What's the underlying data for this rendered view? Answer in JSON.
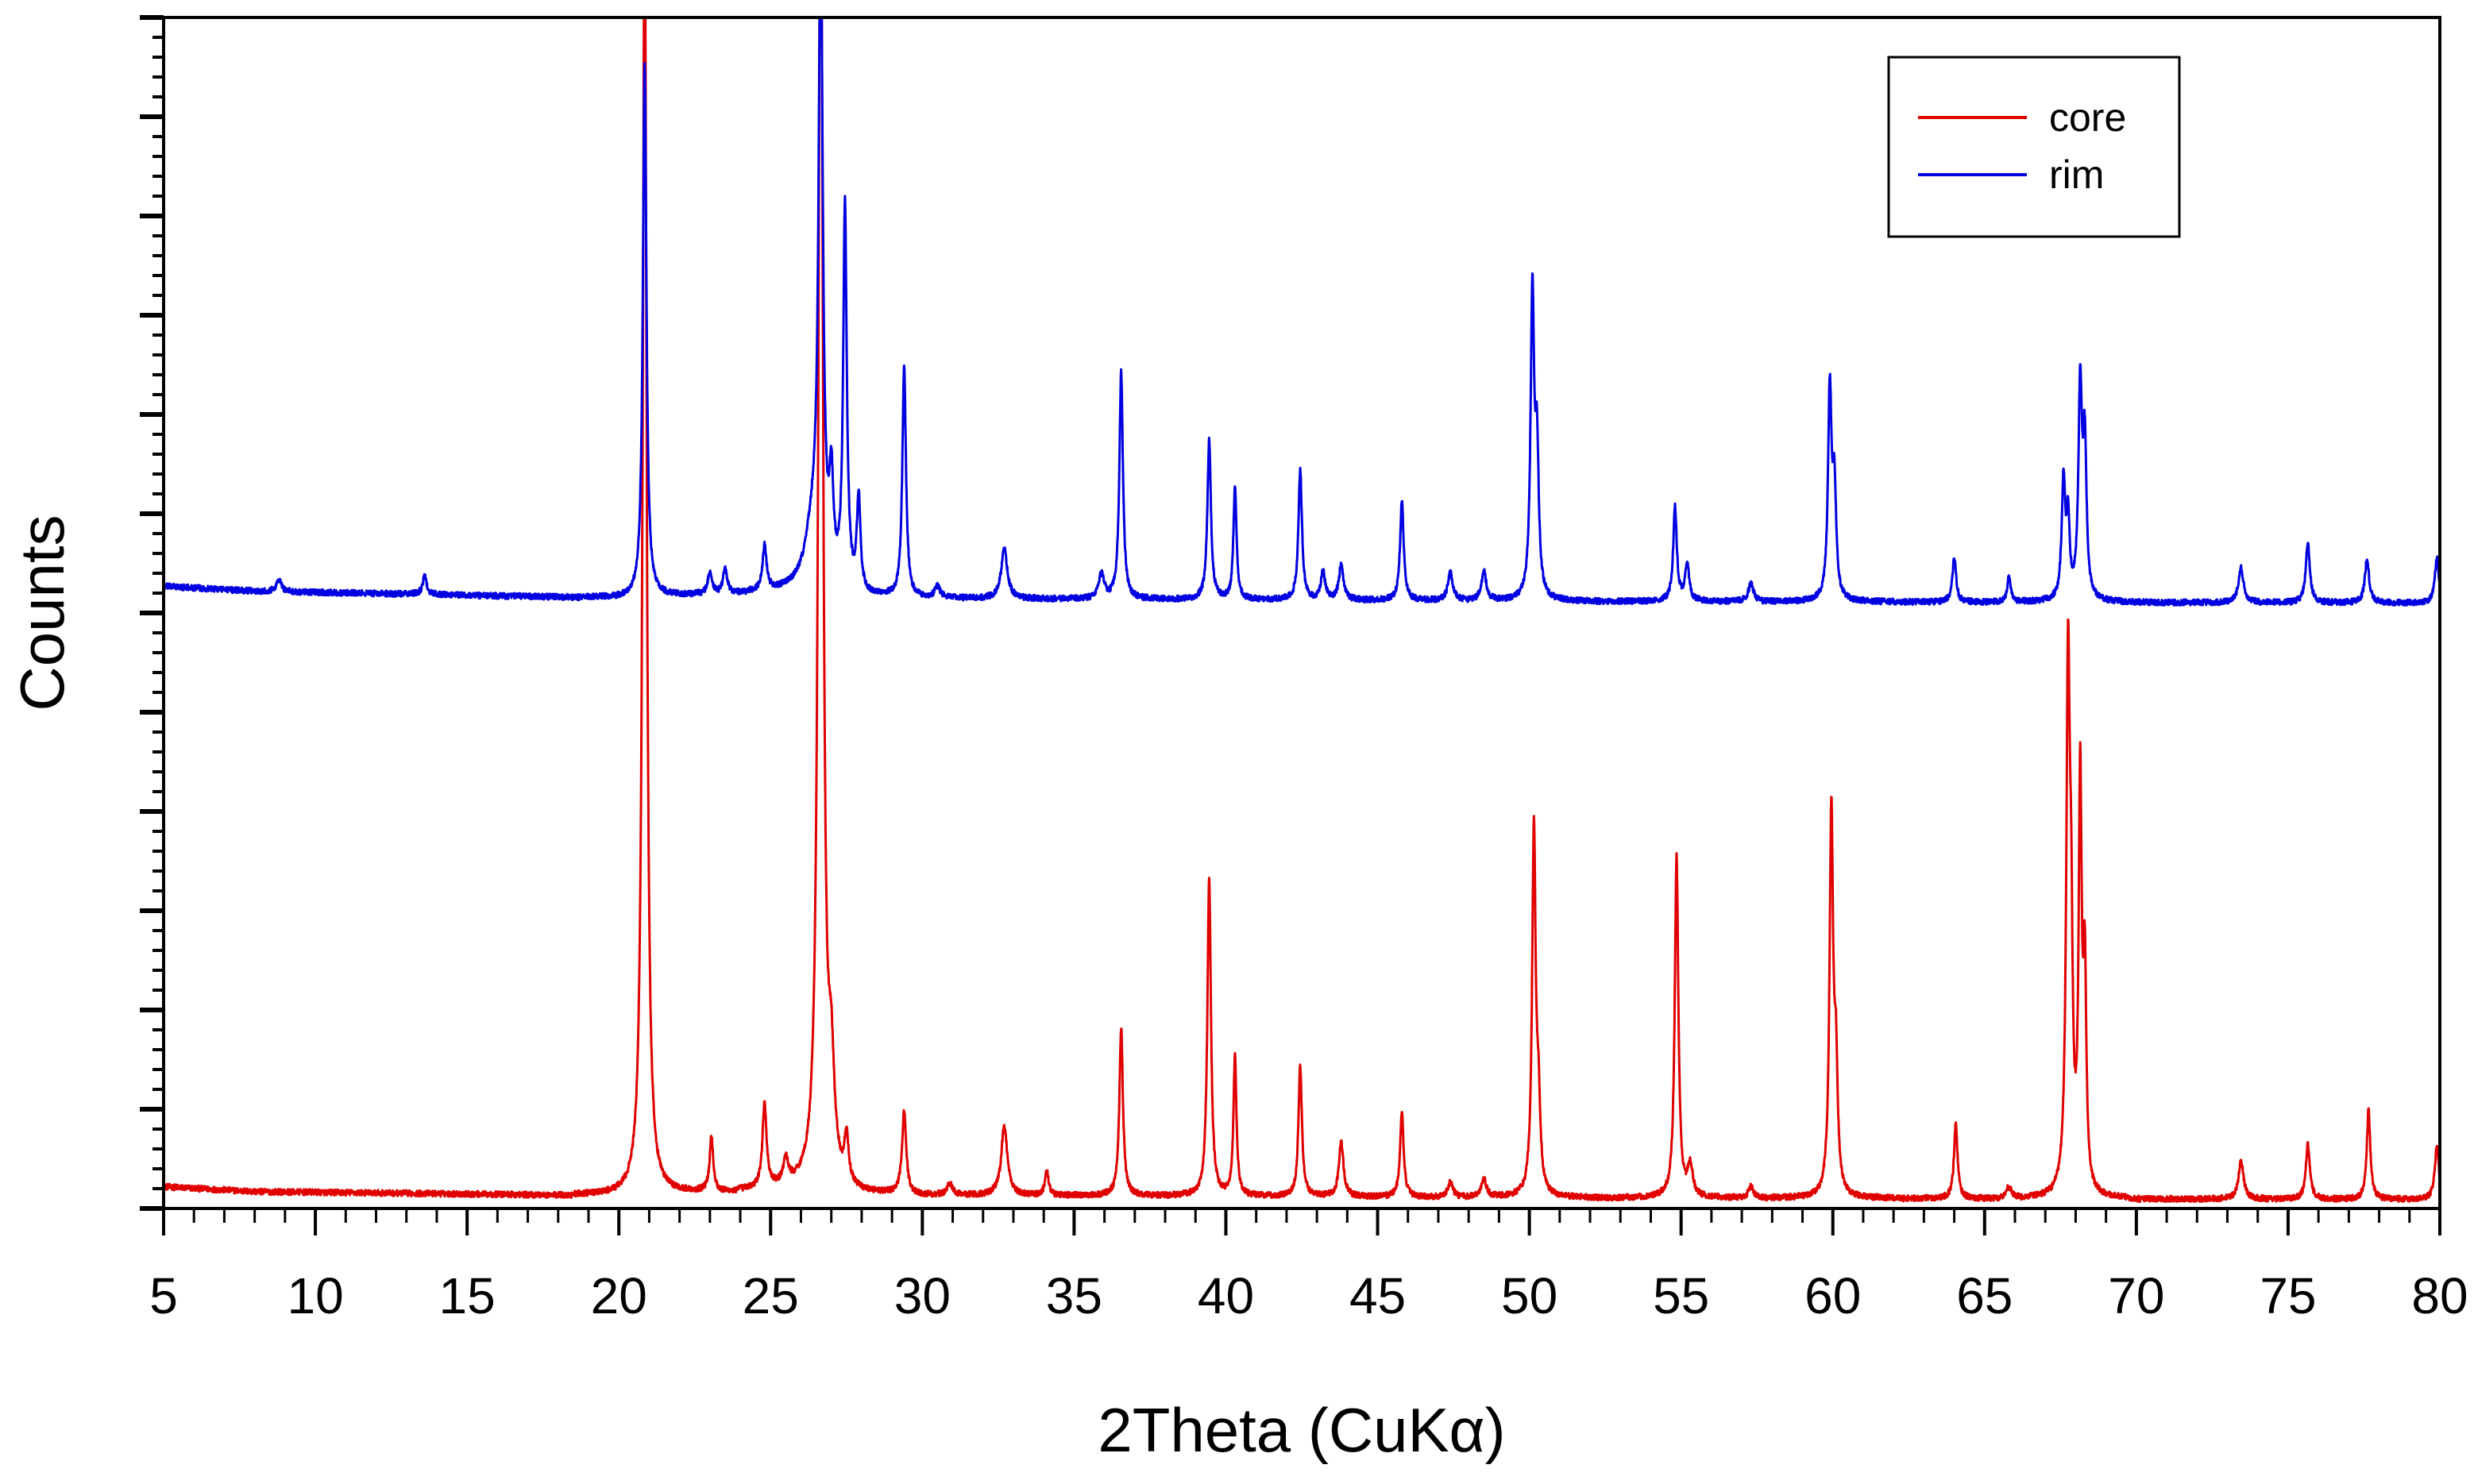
{
  "chart_data": {
    "type": "line",
    "title": "",
    "xlabel": "2Theta (CuKα)",
    "ylabel": "Counts",
    "xlim": [
      5,
      80
    ],
    "ylim": [
      0,
      1200
    ],
    "x_ticks": [
      "5",
      "10",
      "15",
      "20",
      "25",
      "30",
      "35",
      "40",
      "45",
      "50",
      "55",
      "60",
      "65",
      "70",
      "75",
      "80"
    ],
    "legend_position": "top-right",
    "series": [
      {
        "name": "core",
        "color": "#e00000",
        "baseline": 18,
        "noise": 3,
        "background": [
          [
            5,
            22
          ],
          [
            8,
            17
          ],
          [
            20,
            13
          ],
          [
            26,
            20
          ],
          [
            28,
            14
          ],
          [
            50,
            11
          ],
          [
            80,
            9
          ]
        ],
        "peaks": [
          [
            20.85,
            1300,
            0.08
          ],
          [
            23.05,
            55,
            0.07
          ],
          [
            24.8,
            85,
            0.08
          ],
          [
            25.5,
            25,
            0.1
          ],
          [
            26.65,
            1400,
            0.09
          ],
          [
            27.0,
            100,
            0.12
          ],
          [
            27.5,
            45,
            0.08
          ],
          [
            29.4,
            85,
            0.08
          ],
          [
            30.9,
            12,
            0.1
          ],
          [
            32.7,
            70,
            0.12
          ],
          [
            34.1,
            25,
            0.07
          ],
          [
            36.55,
            170,
            0.07
          ],
          [
            39.45,
            320,
            0.07
          ],
          [
            40.3,
            140,
            0.06
          ],
          [
            42.45,
            130,
            0.07
          ],
          [
            43.8,
            55,
            0.09
          ],
          [
            45.8,
            85,
            0.07
          ],
          [
            47.4,
            15,
            0.1
          ],
          [
            48.5,
            18,
            0.1
          ],
          [
            50.15,
            370,
            0.07
          ],
          [
            50.3,
            80,
            0.07
          ],
          [
            54.85,
            345,
            0.07
          ],
          [
            55.3,
            30,
            0.1
          ],
          [
            57.3,
            12,
            0.1
          ],
          [
            59.95,
            385,
            0.07
          ],
          [
            60.1,
            120,
            0.07
          ],
          [
            64.05,
            75,
            0.07
          ],
          [
            65.8,
            12,
            0.1
          ],
          [
            67.75,
            520,
            0.07
          ],
          [
            67.85,
            200,
            0.06
          ],
          [
            68.15,
            405,
            0.06
          ],
          [
            68.3,
            210,
            0.06
          ],
          [
            73.45,
            38,
            0.1
          ],
          [
            75.65,
            55,
            0.08
          ],
          [
            77.65,
            90,
            0.07
          ],
          [
            79.9,
            55,
            0.08
          ]
        ]
      },
      {
        "name": "rim",
        "color": "#0000e0",
        "baseline": 618,
        "noise": 3,
        "background": [
          [
            5,
            627
          ],
          [
            8,
            622
          ],
          [
            20,
            615
          ],
          [
            26,
            622
          ],
          [
            28,
            615
          ],
          [
            50,
            612
          ],
          [
            80,
            610
          ]
        ],
        "peaks": [
          [
            8.8,
            12,
            0.1
          ],
          [
            13.6,
            18,
            0.08
          ],
          [
            20.85,
            540,
            0.07
          ],
          [
            23.0,
            22,
            0.08
          ],
          [
            23.5,
            25,
            0.08
          ],
          [
            24.8,
            45,
            0.08
          ],
          [
            26.4,
            60,
            0.3
          ],
          [
            26.65,
            650,
            0.08
          ],
          [
            27.0,
            95,
            0.08
          ],
          [
            27.45,
            385,
            0.07
          ],
          [
            27.9,
            95,
            0.07
          ],
          [
            29.4,
            235,
            0.07
          ],
          [
            30.5,
            12,
            0.1
          ],
          [
            32.7,
            50,
            0.12
          ],
          [
            35.9,
            25,
            0.1
          ],
          [
            36.55,
            230,
            0.07
          ],
          [
            39.45,
            160,
            0.07
          ],
          [
            40.3,
            115,
            0.06
          ],
          [
            42.45,
            130,
            0.07
          ],
          [
            43.2,
            30,
            0.08
          ],
          [
            43.8,
            35,
            0.09
          ],
          [
            45.8,
            100,
            0.07
          ],
          [
            47.4,
            28,
            0.1
          ],
          [
            48.5,
            30,
            0.09
          ],
          [
            50.1,
            305,
            0.07
          ],
          [
            50.25,
            140,
            0.07
          ],
          [
            54.8,
            95,
            0.07
          ],
          [
            55.2,
            38,
            0.08
          ],
          [
            57.3,
            18,
            0.1
          ],
          [
            59.9,
            210,
            0.07
          ],
          [
            60.05,
            110,
            0.07
          ],
          [
            64.0,
            45,
            0.07
          ],
          [
            65.8,
            25,
            0.07
          ],
          [
            67.6,
            120,
            0.07
          ],
          [
            67.75,
            75,
            0.06
          ],
          [
            68.15,
            210,
            0.07
          ],
          [
            68.3,
            150,
            0.07
          ],
          [
            73.45,
            35,
            0.1
          ],
          [
            75.65,
            60,
            0.08
          ],
          [
            77.6,
            45,
            0.08
          ],
          [
            79.9,
            45,
            0.08
          ]
        ]
      }
    ]
  }
}
